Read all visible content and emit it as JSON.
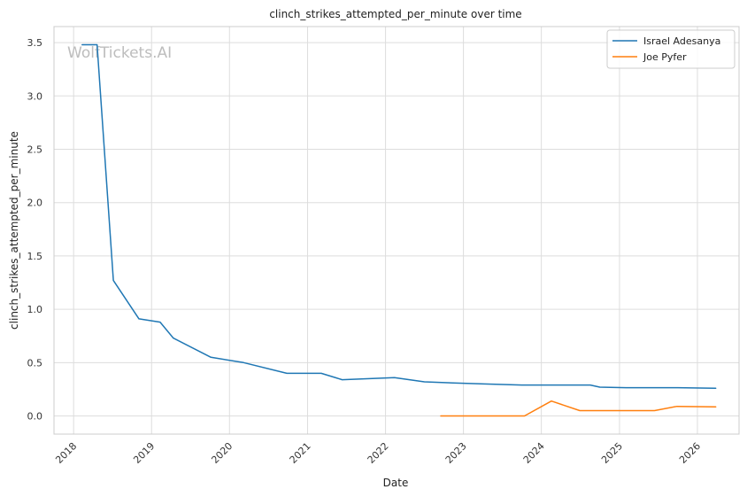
{
  "chart_data": {
    "type": "line",
    "title": "clinch_strikes_attempted_per_minute over time",
    "xlabel": "Date",
    "ylabel": "clinch_strikes_attempted_per_minute",
    "watermark": "WolfTickets.AI",
    "grid": true,
    "legend_position": "top-right",
    "xlim": [
      "2017-10-01",
      "2026-07-15"
    ],
    "ylim": [
      -0.17,
      3.65
    ],
    "x_ticks": [
      "2018-01-01",
      "2019-01-01",
      "2020-01-01",
      "2021-01-01",
      "2022-01-01",
      "2023-01-01",
      "2024-01-01",
      "2025-01-01",
      "2026-01-01"
    ],
    "x_tick_labels": [
      "2018",
      "2019",
      "2020",
      "2021",
      "2022",
      "2023",
      "2024",
      "2025",
      "2026"
    ],
    "y_ticks": [
      0.0,
      0.5,
      1.0,
      1.5,
      2.0,
      2.5,
      3.0,
      3.5
    ],
    "y_tick_labels": [
      "0.0",
      "0.5",
      "1.0",
      "1.5",
      "2.0",
      "2.5",
      "3.0",
      "3.5"
    ],
    "series": [
      {
        "name": "Israel Adesanya",
        "color": "#1f77b4",
        "x": [
          "2018-02-10",
          "2018-04-21",
          "2018-07-06",
          "2018-11-03",
          "2019-02-10",
          "2019-04-13",
          "2019-10-06",
          "2020-03-07",
          "2020-09-26",
          "2021-03-06",
          "2021-06-12",
          "2022-02-12",
          "2022-07-02",
          "2022-11-12",
          "2023-04-08",
          "2023-10-01",
          "2024-08-17",
          "2024-10-01",
          "2025-02-01",
          "2025-10-01",
          "2026-03-28"
        ],
        "y": [
          3.48,
          3.48,
          1.27,
          0.91,
          0.88,
          0.73,
          0.55,
          0.5,
          0.4,
          0.4,
          0.34,
          0.36,
          0.32,
          0.31,
          0.3,
          0.29,
          0.29,
          0.27,
          0.265,
          0.265,
          0.26
        ]
      },
      {
        "name": "Joe Pyfer",
        "color": "#ff7f0e",
        "x": [
          "2022-09-17",
          "2023-01-01",
          "2023-06-01",
          "2023-10-14",
          "2024-02-17",
          "2024-06-29",
          "2025-06-14",
          "2025-09-27",
          "2026-03-28"
        ],
        "y": [
          0.0,
          0.0,
          0.0,
          0.0,
          0.14,
          0.05,
          0.05,
          0.09,
          0.085
        ]
      }
    ]
  }
}
